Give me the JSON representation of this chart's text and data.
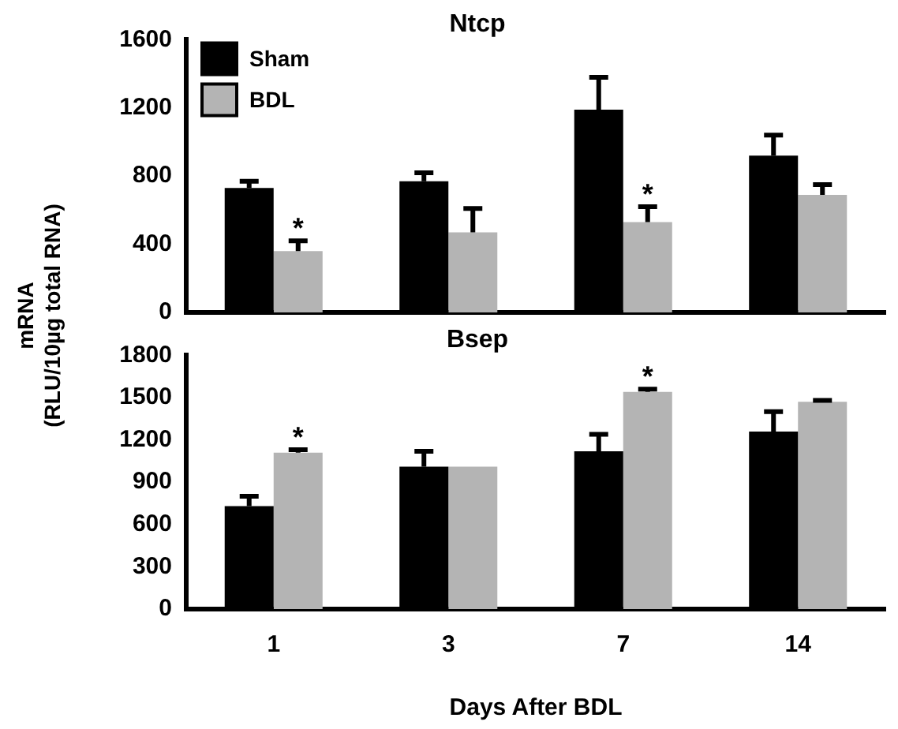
{
  "chart_data": [
    {
      "type": "bar",
      "title": "Ntcp",
      "ylabel": "mRNA\n(RLU/10µg total RNA)",
      "categories": [
        "1",
        "3",
        "7",
        "14"
      ],
      "series": [
        {
          "name": "Sham",
          "color": "#000000",
          "values": [
            730,
            770,
            1190,
            920
          ],
          "errors": [
            40,
            50,
            190,
            120
          ]
        },
        {
          "name": "BDL",
          "color": "#b4b4b4",
          "values": [
            360,
            470,
            530,
            690
          ],
          "errors": [
            60,
            140,
            90,
            60
          ]
        }
      ],
      "ylim": [
        0,
        1600
      ],
      "yticks": [
        0,
        400,
        800,
        1200,
        1600
      ],
      "grid": false,
      "legend": "top left",
      "tick_labels": "y",
      "annotations": [
        {
          "text": "*",
          "x": "1",
          "y": 420
        },
        {
          "text": "*",
          "x": "7",
          "y": 620
        }
      ]
    },
    {
      "type": "bar",
      "title": "Bsep",
      "xlabel": "Days After BDL",
      "categories": [
        "1",
        "3",
        "7",
        "14"
      ],
      "series": [
        {
          "color": "#000000",
          "values": [
            730,
            1010,
            1120,
            1260
          ],
          "errors": [
            70,
            110,
            120,
            140
          ]
        },
        {
          "color": "#b4b4b4",
          "values": [
            1110,
            1010,
            1540,
            1470
          ],
          "errors": [
            20,
            null,
            20,
            10
          ]
        }
      ],
      "ylim": [
        0,
        1800
      ],
      "yticks": [
        0,
        300,
        600,
        900,
        1200,
        1500,
        1800
      ],
      "grid": false,
      "legend": false,
      "annotations": [
        {
          "text": "*",
          "x": "1",
          "y": 1130
        },
        {
          "text": "*",
          "x": "7",
          "y": 1560
        }
      ]
    }
  ]
}
